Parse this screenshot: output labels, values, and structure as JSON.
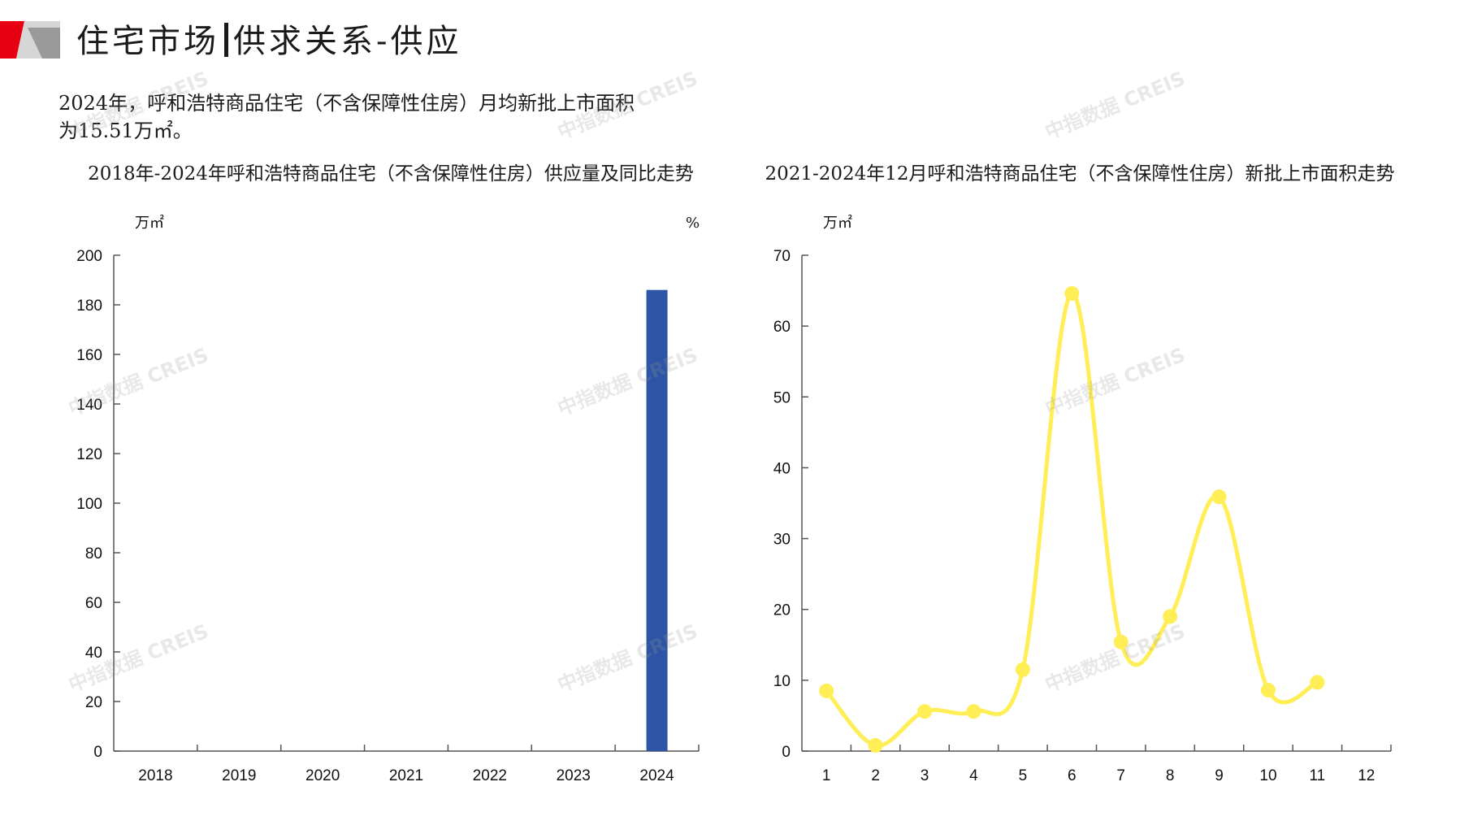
{
  "header": {
    "title_part1": "住宅市场",
    "title_part2": "供求关系-供应"
  },
  "summary": {
    "text_line1": "2024年，呼和浩特商品住宅（不含保障性住房）月均新批上市面积",
    "text_line2": "为15.51万㎡。"
  },
  "watermark": {
    "text": "中指数据 CREIS"
  },
  "colors": {
    "bar": "#2e55a5",
    "line": "#ffee55",
    "axis": "#555555",
    "logo_red": "#e60012",
    "logo_gray": "#9a9a9a"
  },
  "chart_data": [
    {
      "type": "bar",
      "title": "2018年-2024年呼和浩特商品住宅（不含保障性住房）供应量及同比走势",
      "ylabel": "万㎡",
      "y2label": "%",
      "categories": [
        "2018",
        "2019",
        "2020",
        "2021",
        "2022",
        "2023",
        "2024"
      ],
      "values": [
        null,
        null,
        null,
        null,
        null,
        null,
        186
      ],
      "ylim": [
        0,
        200
      ],
      "yticks": [
        "0",
        "20",
        "40",
        "60",
        "80",
        "100",
        "120",
        "140",
        "160",
        "180",
        "200"
      ],
      "grid": false
    },
    {
      "type": "line",
      "title": "2021-2024年12月呼和浩特商品住宅（不含保障性住房）新批上市面积走势",
      "ylabel": "万㎡",
      "categories": [
        "1",
        "2",
        "3",
        "4",
        "5",
        "6",
        "7",
        "8",
        "9",
        "10",
        "11",
        "12"
      ],
      "values": [
        8.5,
        0.8,
        5.6,
        5.6,
        11.5,
        64.6,
        15.4,
        19.0,
        35.9,
        8.6,
        9.7,
        null
      ],
      "ylim": [
        0,
        70
      ],
      "yticks": [
        "0",
        "10",
        "20",
        "30",
        "40",
        "50",
        "60",
        "70"
      ],
      "smooth": true,
      "grid": false
    }
  ]
}
